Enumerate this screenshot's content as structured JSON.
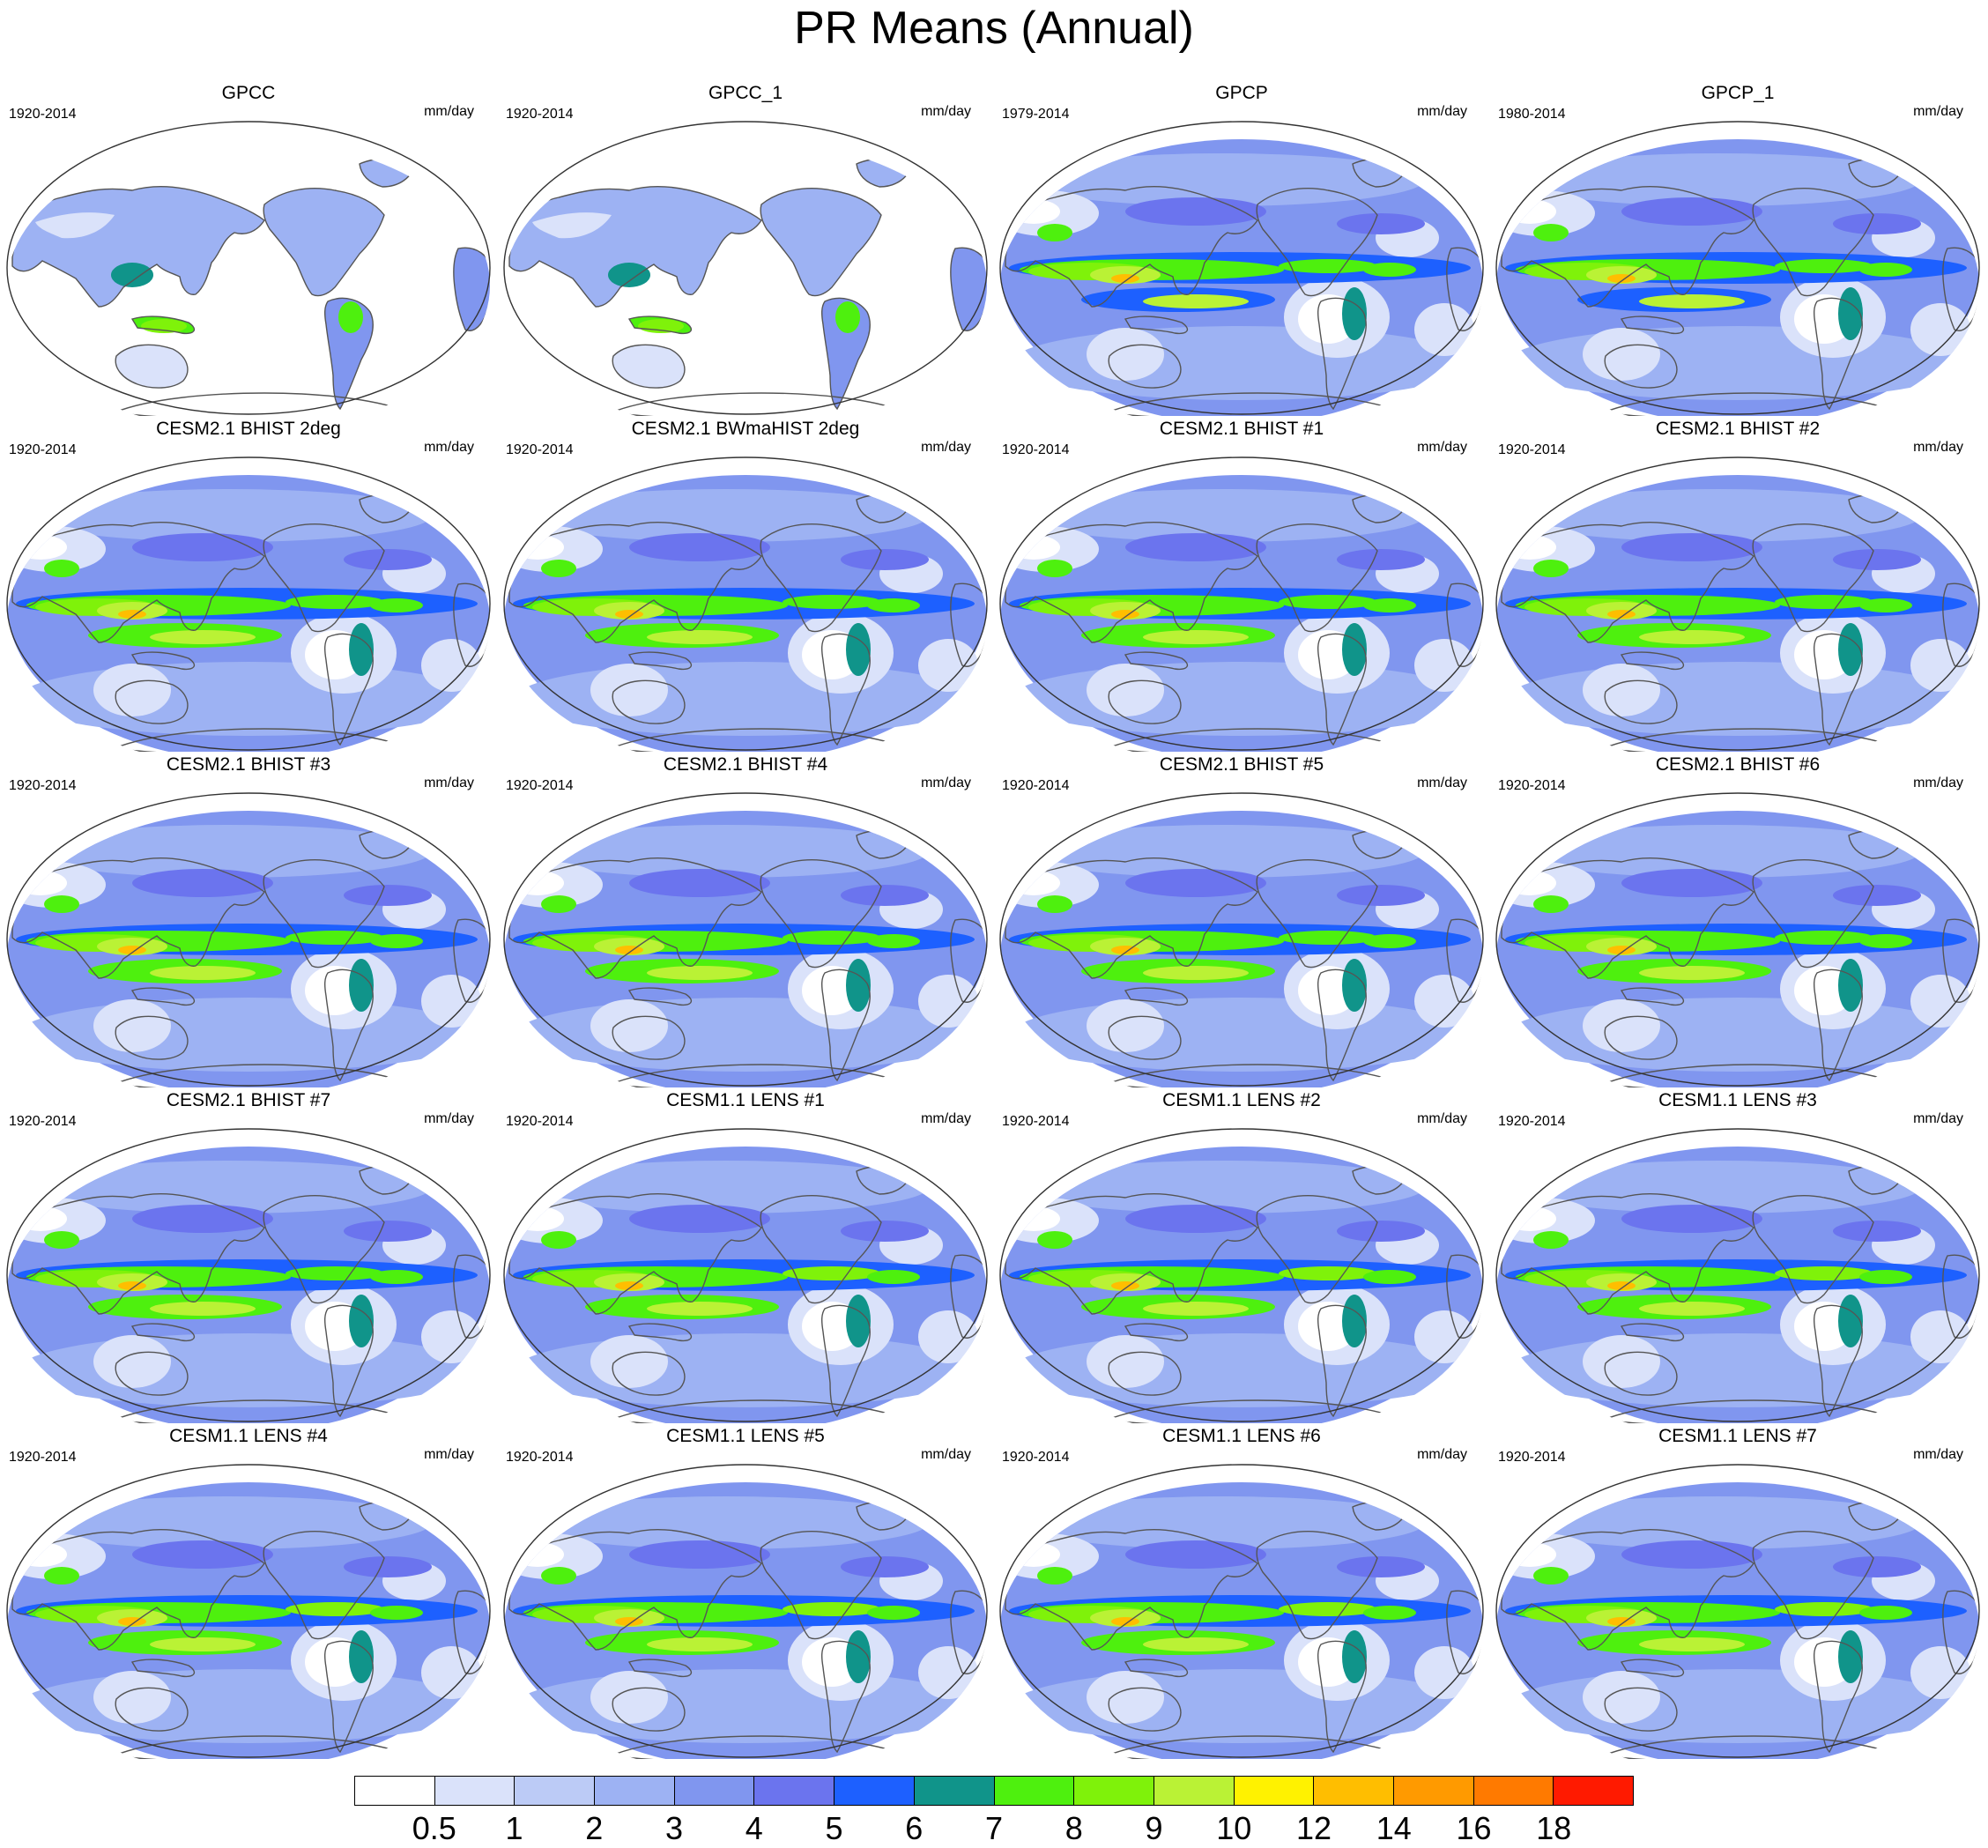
{
  "title": "PR Means (Annual)",
  "units_label": "mm/day",
  "panels": [
    {
      "title": "GPCC",
      "period": "1920-2014",
      "dataset": "obs-land"
    },
    {
      "title": "GPCC_1",
      "period": "1920-2014",
      "dataset": "obs-land"
    },
    {
      "title": "GPCP",
      "period": "1979-2014",
      "dataset": "obs"
    },
    {
      "title": "GPCP_1",
      "period": "1980-2014",
      "dataset": "obs"
    },
    {
      "title": "CESM2.1 BHIST 2deg",
      "period": "1920-2014",
      "dataset": "cesm2"
    },
    {
      "title": "CESM2.1 BWmaHIST 2deg",
      "period": "1920-2014",
      "dataset": "cesm2"
    },
    {
      "title": "CESM2.1 BHIST #1",
      "period": "1920-2014",
      "dataset": "cesm2"
    },
    {
      "title": "CESM2.1 BHIST #2",
      "period": "1920-2014",
      "dataset": "cesm2"
    },
    {
      "title": "CESM2.1 BHIST #3",
      "period": "1920-2014",
      "dataset": "cesm2"
    },
    {
      "title": "CESM2.1 BHIST #4",
      "period": "1920-2014",
      "dataset": "cesm2"
    },
    {
      "title": "CESM2.1 BHIST #5",
      "period": "1920-2014",
      "dataset": "cesm2"
    },
    {
      "title": "CESM2.1 BHIST #6",
      "period": "1920-2014",
      "dataset": "cesm2"
    },
    {
      "title": "CESM2.1 BHIST #7",
      "period": "1920-2014",
      "dataset": "cesm2"
    },
    {
      "title": "CESM1.1 LENS #1",
      "period": "1920-2014",
      "dataset": "lens"
    },
    {
      "title": "CESM1.1 LENS #2",
      "period": "1920-2014",
      "dataset": "lens"
    },
    {
      "title": "CESM1.1 LENS #3",
      "period": "1920-2014",
      "dataset": "lens"
    },
    {
      "title": "CESM1.1 LENS #4",
      "period": "1920-2014",
      "dataset": "lens"
    },
    {
      "title": "CESM1.1 LENS #5",
      "period": "1920-2014",
      "dataset": "lens"
    },
    {
      "title": "CESM1.1 LENS #6",
      "period": "1920-2014",
      "dataset": "lens"
    },
    {
      "title": "CESM1.1 LENS #7",
      "period": "1920-2014",
      "dataset": "lens"
    }
  ],
  "colorbar": {
    "levels": [
      "0.5",
      "1",
      "2",
      "3",
      "4",
      "5",
      "6",
      "7",
      "8",
      "9",
      "10",
      "12",
      "14",
      "16",
      "18"
    ],
    "colors": [
      "#ffffff",
      "#dae2fa",
      "#bccbf6",
      "#9db2f3",
      "#8096ef",
      "#6b74ee",
      "#1d60ff",
      "#10948a",
      "#4ef00e",
      "#7ff20a",
      "#baf235",
      "#fff200",
      "#ffbe00",
      "#ff9a00",
      "#ff7a00",
      "#ff1a00"
    ]
  }
}
